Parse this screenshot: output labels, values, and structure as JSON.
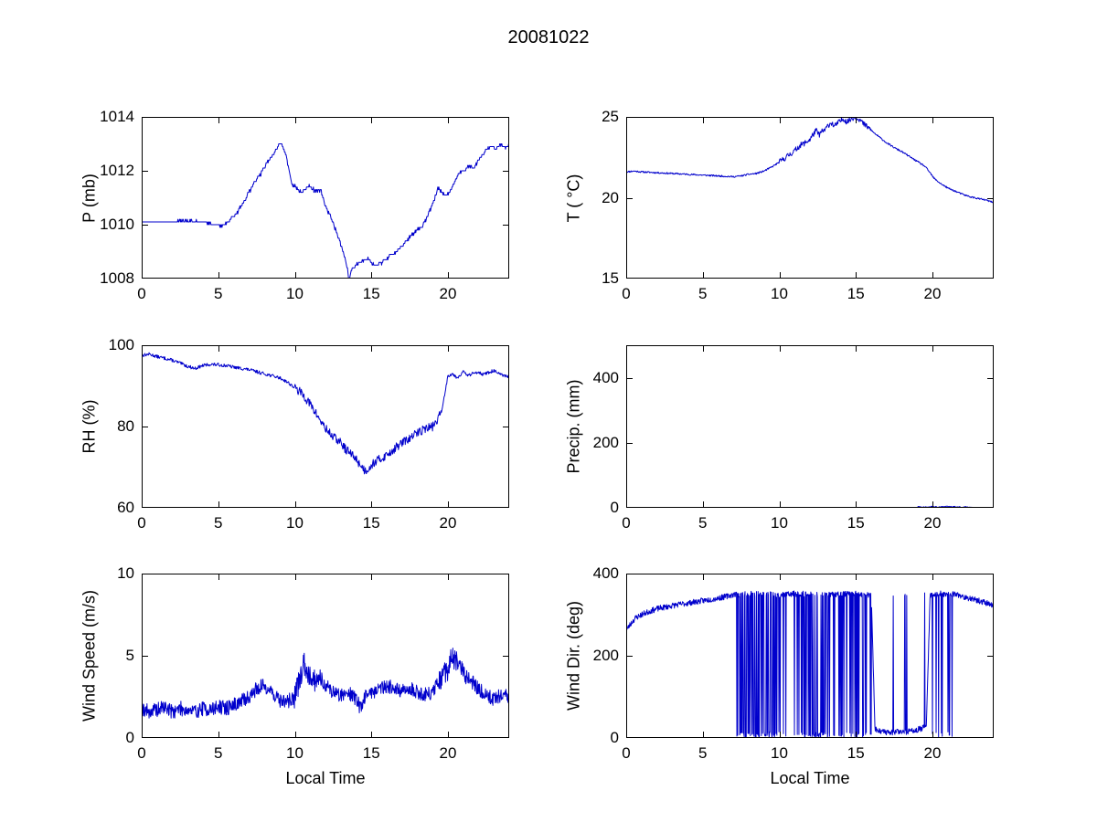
{
  "title": "20081022",
  "line_color": "#0000CC",
  "axis_color": "#000000",
  "chart_data": [
    {
      "id": "pressure",
      "type": "line",
      "ylabel": "P (mb)",
      "xlabel": "",
      "xlim": [
        0,
        24
      ],
      "ylim": [
        1008,
        1014
      ],
      "xticks": [
        0,
        5,
        10,
        15,
        20
      ],
      "yticks": [
        1008,
        1010,
        1012,
        1014
      ],
      "n": 700,
      "seed": 7,
      "noise": 0.05,
      "quantize": 0.1,
      "anchors": [
        [
          0,
          1010.1
        ],
        [
          2,
          1010.1
        ],
        [
          3,
          1010.15
        ],
        [
          4,
          1010.1
        ],
        [
          4.8,
          1010.0
        ],
        [
          5.3,
          1009.95
        ],
        [
          5.7,
          1010.15
        ],
        [
          6,
          1010.3
        ],
        [
          6.3,
          1010.5
        ],
        [
          6.7,
          1010.9
        ],
        [
          7,
          1011.2
        ],
        [
          7.4,
          1011.6
        ],
        [
          7.8,
          1011.9
        ],
        [
          8.2,
          1012.3
        ],
        [
          8.6,
          1012.6
        ],
        [
          9,
          1013.0
        ],
        [
          9.2,
          1012.95
        ],
        [
          9.4,
          1012.6
        ],
        [
          9.6,
          1012.1
        ],
        [
          9.8,
          1011.5
        ],
        [
          10.1,
          1011.4
        ],
        [
          10.4,
          1011.2
        ],
        [
          10.7,
          1011.3
        ],
        [
          11,
          1011.45
        ],
        [
          11.3,
          1011.25
        ],
        [
          11.7,
          1011.3
        ],
        [
          12,
          1010.7
        ],
        [
          12.4,
          1010.2
        ],
        [
          12.8,
          1009.6
        ],
        [
          13.1,
          1009.1
        ],
        [
          13.4,
          1008.5
        ],
        [
          13.55,
          1007.9
        ],
        [
          13.7,
          1008.35
        ],
        [
          14,
          1008.5
        ],
        [
          14.4,
          1008.65
        ],
        [
          14.7,
          1008.75
        ],
        [
          15,
          1008.6
        ],
        [
          15.3,
          1008.45
        ],
        [
          15.7,
          1008.6
        ],
        [
          16,
          1008.75
        ],
        [
          16.4,
          1008.9
        ],
        [
          16.8,
          1009.1
        ],
        [
          17.2,
          1009.35
        ],
        [
          17.6,
          1009.6
        ],
        [
          18,
          1009.8
        ],
        [
          18.4,
          1010.0
        ],
        [
          18.8,
          1010.5
        ],
        [
          19.1,
          1010.9
        ],
        [
          19.35,
          1011.4
        ],
        [
          19.6,
          1011.2
        ],
        [
          19.9,
          1011.05
        ],
        [
          20.2,
          1011.3
        ],
        [
          20.5,
          1011.7
        ],
        [
          20.8,
          1011.95
        ],
        [
          21.1,
          1012.0
        ],
        [
          21.4,
          1012.2
        ],
        [
          21.7,
          1012.1
        ],
        [
          22,
          1012.4
        ],
        [
          22.4,
          1012.7
        ],
        [
          22.8,
          1012.95
        ],
        [
          23.1,
          1012.8
        ],
        [
          23.4,
          1013.0
        ],
        [
          23.7,
          1012.85
        ],
        [
          24,
          1012.95
        ]
      ]
    },
    {
      "id": "temperature",
      "type": "line",
      "ylabel": "T ( °C)",
      "xlabel": "",
      "xlim": [
        0,
        24
      ],
      "ylim": [
        15,
        25
      ],
      "xticks": [
        0,
        5,
        10,
        15,
        20
      ],
      "yticks": [
        15,
        20,
        25
      ],
      "n": 700,
      "seed": 11,
      "noise": 0.05,
      "noise_regions": [
        {
          "range": [
            10,
            16
          ],
          "noise": 0.18
        }
      ],
      "anchors": [
        [
          0,
          21.6
        ],
        [
          0.5,
          21.65
        ],
        [
          1,
          21.6
        ],
        [
          2,
          21.55
        ],
        [
          3,
          21.5
        ],
        [
          4,
          21.45
        ],
        [
          5,
          21.4
        ],
        [
          6,
          21.35
        ],
        [
          7,
          21.3
        ],
        [
          7.5,
          21.35
        ],
        [
          8,
          21.45
        ],
        [
          8.5,
          21.5
        ],
        [
          9,
          21.65
        ],
        [
          9.5,
          21.9
        ],
        [
          10,
          22.2
        ],
        [
          10.5,
          22.55
        ],
        [
          11,
          22.9
        ],
        [
          11.3,
          23.2
        ],
        [
          11.6,
          23.35
        ],
        [
          12,
          23.6
        ],
        [
          12.2,
          23.9
        ],
        [
          12.4,
          24.15
        ],
        [
          12.6,
          23.9
        ],
        [
          12.8,
          24.1
        ],
        [
          13,
          24.2
        ],
        [
          13.2,
          24.5
        ],
        [
          13.4,
          24.65
        ],
        [
          13.6,
          24.4
        ],
        [
          13.8,
          24.6
        ],
        [
          14,
          24.75
        ],
        [
          14.2,
          24.9
        ],
        [
          14.4,
          24.7
        ],
        [
          14.6,
          24.8
        ],
        [
          14.8,
          24.95
        ],
        [
          15,
          25.0
        ],
        [
          15.2,
          24.9
        ],
        [
          15.5,
          24.55
        ],
        [
          15.8,
          24.35
        ],
        [
          16.2,
          24.0
        ],
        [
          16.6,
          23.7
        ],
        [
          17,
          23.4
        ],
        [
          17.5,
          23.1
        ],
        [
          18,
          22.85
        ],
        [
          18.5,
          22.55
        ],
        [
          19,
          22.25
        ],
        [
          19.5,
          21.95
        ],
        [
          19.8,
          21.6
        ],
        [
          20.1,
          21.2
        ],
        [
          20.5,
          20.9
        ],
        [
          21,
          20.6
        ],
        [
          21.5,
          20.4
        ],
        [
          22,
          20.2
        ],
        [
          22.5,
          20.05
        ],
        [
          23,
          19.95
        ],
        [
          23.5,
          19.85
        ],
        [
          24,
          19.7
        ]
      ]
    },
    {
      "id": "humidity",
      "type": "line",
      "ylabel": "RH (%)",
      "xlabel": "",
      "xlim": [
        0,
        24
      ],
      "ylim": [
        60,
        100
      ],
      "xticks": [
        0,
        5,
        10,
        15,
        20
      ],
      "yticks": [
        60,
        80,
        100
      ],
      "n": 700,
      "seed": 13,
      "noise": 0.4,
      "noise_regions": [
        {
          "range": [
            10,
            19.5
          ],
          "noise": 1.1
        }
      ],
      "clamp": [
        0,
        100
      ],
      "anchors": [
        [
          0,
          97.5
        ],
        [
          0.5,
          97.8
        ],
        [
          1,
          97.2
        ],
        [
          1.5,
          96.8
        ],
        [
          2,
          96.3
        ],
        [
          2.5,
          95.6
        ],
        [
          3,
          94.8
        ],
        [
          3.5,
          94.3
        ],
        [
          4,
          95.0
        ],
        [
          4.5,
          95.3
        ],
        [
          5,
          95.2
        ],
        [
          5.5,
          95.0
        ],
        [
          6,
          94.6
        ],
        [
          6.5,
          94.3
        ],
        [
          7,
          94.0
        ],
        [
          7.5,
          93.5
        ],
        [
          8,
          93.0
        ],
        [
          8.5,
          92.5
        ],
        [
          9,
          92.0
        ],
        [
          9.5,
          91.0
        ],
        [
          10,
          89.5
        ],
        [
          10.5,
          88.0
        ],
        [
          11,
          85.5
        ],
        [
          11.5,
          82.5
        ],
        [
          12,
          79.5
        ],
        [
          12.5,
          77.5
        ],
        [
          13,
          76.0
        ],
        [
          13.3,
          74.5
        ],
        [
          13.6,
          73.5
        ],
        [
          14,
          72.0
        ],
        [
          14.3,
          70.5
        ],
        [
          14.6,
          69.0
        ],
        [
          15,
          70.5
        ],
        [
          15.3,
          71.5
        ],
        [
          15.6,
          72.0
        ],
        [
          16,
          73.0
        ],
        [
          16.5,
          74.5
        ],
        [
          17,
          76.0
        ],
        [
          17.5,
          77.0
        ],
        [
          18,
          78.5
        ],
        [
          18.5,
          79.5
        ],
        [
          19,
          80.0
        ],
        [
          19.3,
          81.5
        ],
        [
          19.6,
          84.0
        ],
        [
          20,
          92.5
        ],
        [
          20.3,
          93.0
        ],
        [
          20.6,
          92.0
        ],
        [
          21,
          93.5
        ],
        [
          21.3,
          92.5
        ],
        [
          21.6,
          93.0
        ],
        [
          22,
          93.5
        ],
        [
          22.3,
          92.8
        ],
        [
          22.6,
          93.2
        ],
        [
          23,
          93.8
        ],
        [
          23.3,
          93.0
        ],
        [
          23.6,
          92.5
        ],
        [
          24,
          92.2
        ]
      ]
    },
    {
      "id": "precipitation",
      "type": "line",
      "ylabel": "Precip. (mm)",
      "xlabel": "",
      "xlim": [
        0,
        24
      ],
      "ylim": [
        0,
        500
      ],
      "xticks": [
        0,
        5,
        10,
        15,
        20
      ],
      "yticks": [
        0,
        200,
        400
      ],
      "n": 500,
      "seed": 17,
      "noise": 0,
      "noise_regions": [
        {
          "range": [
            18.9,
            22.6
          ],
          "noise": 1.5
        }
      ],
      "clamp": [
        0,
        500
      ],
      "anchors": [
        [
          0,
          0
        ],
        [
          18.6,
          0
        ],
        [
          18.9,
          1
        ],
        [
          19.1,
          3
        ],
        [
          19.4,
          1.5
        ],
        [
          19.7,
          2.5
        ],
        [
          20,
          4
        ],
        [
          20.3,
          2
        ],
        [
          20.6,
          3
        ],
        [
          21,
          5
        ],
        [
          21.3,
          2.5
        ],
        [
          21.6,
          4
        ],
        [
          21.9,
          2
        ],
        [
          22.2,
          3
        ],
        [
          22.5,
          1
        ],
        [
          22.8,
          0
        ],
        [
          24,
          0
        ]
      ]
    },
    {
      "id": "wind-speed",
      "type": "line",
      "ylabel": "Wind Speed (m/s)",
      "xlabel": "Local Time",
      "xlim": [
        0,
        24
      ],
      "ylim": [
        0,
        10
      ],
      "xticks": [
        0,
        5,
        10,
        15,
        20
      ],
      "yticks": [
        0,
        5,
        10
      ],
      "n": 900,
      "seed": 19,
      "noise": 0.45,
      "noise_regions": [
        {
          "range": [
            9.9,
            11.6
          ],
          "noise": 0.7
        },
        {
          "range": [
            19.3,
            21.2
          ],
          "noise": 0.7
        }
      ],
      "clamp": [
        0,
        10
      ],
      "anchors": [
        [
          0,
          1.8
        ],
        [
          0.5,
          1.6
        ],
        [
          1,
          1.7
        ],
        [
          1.5,
          1.9
        ],
        [
          2,
          1.6
        ],
        [
          2.5,
          1.8
        ],
        [
          3,
          1.7
        ],
        [
          3.5,
          1.6
        ],
        [
          4,
          1.8
        ],
        [
          4.5,
          1.7
        ],
        [
          5,
          1.9
        ],
        [
          5.5,
          1.8
        ],
        [
          6,
          2.0
        ],
        [
          6.5,
          2.2
        ],
        [
          7,
          2.5
        ],
        [
          7.5,
          3.0
        ],
        [
          8,
          3.2
        ],
        [
          8.5,
          2.8
        ],
        [
          9,
          2.3
        ],
        [
          9.5,
          2.2
        ],
        [
          10,
          2.5
        ],
        [
          10.3,
          3.5
        ],
        [
          10.6,
          4.5
        ],
        [
          11,
          3.8
        ],
        [
          11.3,
          3.5
        ],
        [
          11.6,
          3.8
        ],
        [
          12,
          3.2
        ],
        [
          12.5,
          2.8
        ],
        [
          13,
          2.6
        ],
        [
          13.5,
          2.8
        ],
        [
          14,
          2.4
        ],
        [
          14.3,
          1.8
        ],
        [
          14.6,
          2.6
        ],
        [
          15,
          2.8
        ],
        [
          15.5,
          3.0
        ],
        [
          16,
          3.2
        ],
        [
          16.5,
          3.0
        ],
        [
          17,
          2.8
        ],
        [
          17.5,
          3.0
        ],
        [
          18,
          2.8
        ],
        [
          18.5,
          2.6
        ],
        [
          19,
          2.8
        ],
        [
          19.5,
          3.5
        ],
        [
          20,
          4.2
        ],
        [
          20.3,
          5.0
        ],
        [
          20.6,
          4.5
        ],
        [
          21,
          4.0
        ],
        [
          21.5,
          3.5
        ],
        [
          22,
          3.0
        ],
        [
          22.5,
          2.6
        ],
        [
          23,
          2.4
        ],
        [
          23.5,
          2.6
        ],
        [
          24,
          2.5
        ]
      ]
    },
    {
      "id": "wind-direction",
      "type": "line",
      "ylabel": "Wind Dir. (deg)",
      "xlabel": "Local Time",
      "xlim": [
        0,
        24
      ],
      "ylim": [
        0,
        400
      ],
      "xticks": [
        0,
        5,
        10,
        15,
        20
      ],
      "yticks": [
        0,
        200,
        400
      ],
      "n": 900,
      "seed": 23,
      "noise": 7,
      "clamp": [
        0,
        360
      ],
      "vspikes": [
        {
          "range": [
            7.2,
            9.6
          ],
          "prob": 0.45,
          "target": 8,
          "spread": 7
        },
        {
          "range": [
            9.6,
            11.4
          ],
          "prob": 0.22,
          "target": 8,
          "spread": 7
        },
        {
          "range": [
            11.4,
            13.3
          ],
          "prob": 0.5,
          "target": 8,
          "spread": 7
        },
        {
          "range": [
            13.3,
            16.0
          ],
          "prob": 0.2,
          "target": 8,
          "spread": 7
        },
        {
          "range": [
            16.25,
            19.5
          ],
          "prob": 0.035,
          "target": 350,
          "spread": 6
        },
        {
          "range": [
            19.9,
            21.3
          ],
          "prob": 0.09,
          "target": 8,
          "spread": 7
        }
      ],
      "anchors": [
        [
          0,
          262
        ],
        [
          0.3,
          278
        ],
        [
          0.6,
          292
        ],
        [
          1,
          300
        ],
        [
          1.5,
          308
        ],
        [
          2,
          314
        ],
        [
          2.5,
          318
        ],
        [
          3,
          322
        ],
        [
          3.5,
          325
        ],
        [
          4,
          328
        ],
        [
          4.5,
          331
        ],
        [
          5,
          334
        ],
        [
          5.5,
          337
        ],
        [
          6,
          340
        ],
        [
          6.5,
          344
        ],
        [
          7,
          349
        ],
        [
          8,
          351
        ],
        [
          9,
          350
        ],
        [
          10,
          349
        ],
        [
          11,
          351
        ],
        [
          12,
          350
        ],
        [
          13,
          349
        ],
        [
          14,
          350
        ],
        [
          15,
          351
        ],
        [
          16,
          348
        ],
        [
          16.25,
          22
        ],
        [
          16.7,
          16
        ],
        [
          17.2,
          12
        ],
        [
          17.7,
          17
        ],
        [
          18.2,
          14
        ],
        [
          18.7,
          18
        ],
        [
          19.2,
          22
        ],
        [
          19.6,
          28
        ],
        [
          19.85,
          349
        ],
        [
          20.5,
          351
        ],
        [
          21,
          350
        ],
        [
          21.4,
          349
        ],
        [
          21.8,
          346
        ],
        [
          22.2,
          342
        ],
        [
          22.6,
          338
        ],
        [
          23,
          334
        ],
        [
          23.5,
          329
        ],
        [
          24,
          322
        ]
      ]
    }
  ]
}
